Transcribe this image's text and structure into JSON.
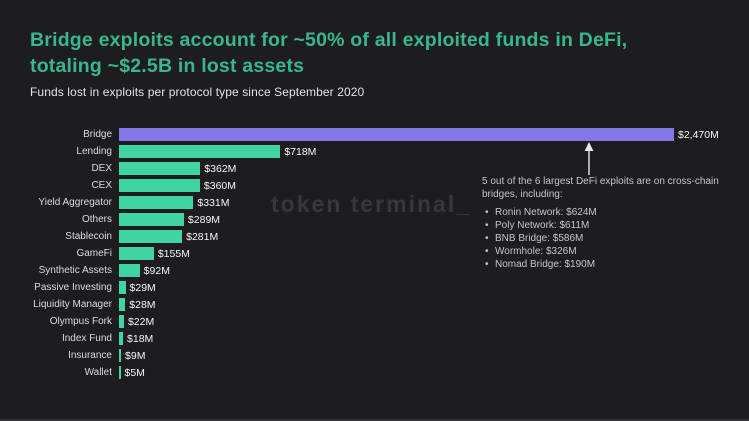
{
  "title": {
    "line1": "Bridge exploits account for ~50% of all exploited funds in DeFi,",
    "line2": "totaling ~$2.5B in lost assets"
  },
  "subtitle": "Funds lost in exploits per protocol type since September 2020",
  "watermark": "token terminal_",
  "colors": {
    "background": "#1d1d21",
    "title_green": "#38b78f",
    "bar_default": "#41d4a3",
    "bar_highlight": "#8478e6",
    "category_label": "#dcdcde",
    "value_label": "#f6f6f8",
    "annotation_text": "#c6c6ca",
    "watermark_text": "#37373d"
  },
  "annotation": {
    "intro_line1": "5 out of the 6 largest DeFi exploits are on cross-chain",
    "intro_line2": "bridges, including:",
    "bullets": [
      "Ronin Network: $624M",
      "Poly Network: $611M",
      "BNB Bridge: $586M",
      "Wormhole: $326M",
      "Nomad Bridge: $190M"
    ]
  },
  "chart_data": {
    "type": "bar",
    "orientation": "horizontal",
    "title": "Funds lost in exploits per protocol type since September 2020",
    "unit": "USD millions",
    "categories": [
      "Bridge",
      "Lending",
      "DEX",
      "CEX",
      "Yield Aggregator",
      "Others",
      "Stablecoin",
      "GameFi",
      "Synthetic Assets",
      "Passive Investing",
      "Liquidity Manager",
      "Olympus Fork",
      "Index Fund",
      "Insurance",
      "Wallet"
    ],
    "values": [
      2470,
      718,
      362,
      360,
      331,
      289,
      281,
      155,
      92,
      29,
      28,
      22,
      18,
      9,
      5
    ],
    "value_labels": [
      "$2,470M",
      "$718M",
      "$362M",
      "$360M",
      "$331M",
      "$289M",
      "$281M",
      "$155M",
      "$92M",
      "$29M",
      "$28M",
      "$22M",
      "$18M",
      "$9M",
      "$5M"
    ],
    "xlim": [
      0,
      2470
    ],
    "highlight_category": "Bridge",
    "grid": false,
    "legend": false
  }
}
